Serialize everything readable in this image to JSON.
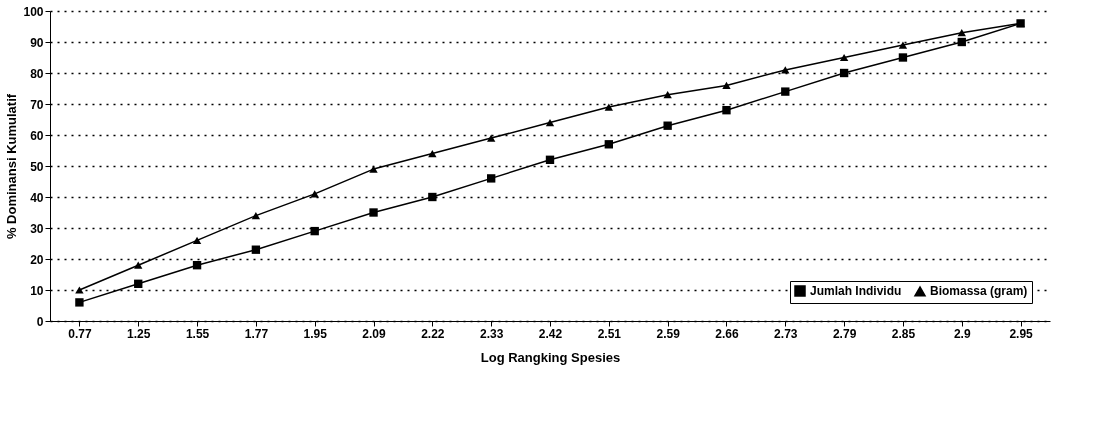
{
  "chart_data": {
    "type": "line",
    "xlabel": "Log Rangking Spesies",
    "ylabel": "% Dominansi Kumulatif",
    "categories": [
      "0.77",
      "1.25",
      "1.55",
      "1.77",
      "1.95",
      "2.09",
      "2.22",
      "2.33",
      "2.42",
      "2.51",
      "2.59",
      "2.66",
      "2.73",
      "2.79",
      "2.85",
      "2.9",
      "2.95"
    ],
    "series": [
      {
        "name": "Jumlah Individu",
        "color": "#000000",
        "marker": "square",
        "values": [
          6,
          12,
          18,
          23,
          29,
          35,
          40,
          46,
          52,
          57,
          63,
          68,
          74,
          80,
          85,
          90,
          96
        ]
      },
      {
        "name": "Biomassa (gram)",
        "color": "#000000",
        "marker": "triangle",
        "values": [
          10,
          18,
          26,
          34,
          41,
          49,
          54,
          59,
          64,
          69,
          73,
          76,
          81,
          85,
          89,
          93,
          96
        ]
      }
    ],
    "ylim": [
      0,
      100
    ],
    "yticks": [
      0,
      10,
      20,
      30,
      40,
      50,
      60,
      70,
      80,
      90,
      100
    ],
    "grid": "y",
    "legend": "bottom right",
    "line_style": "solid"
  }
}
